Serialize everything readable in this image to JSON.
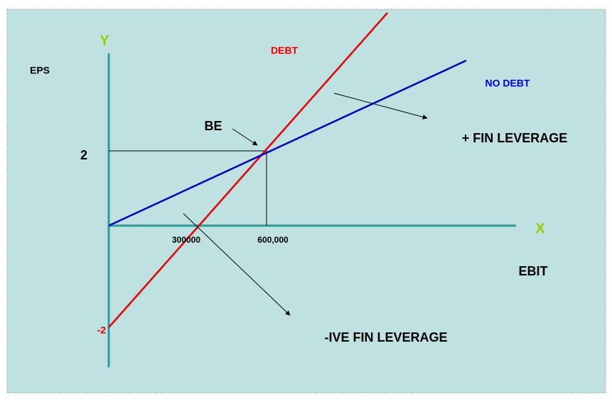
{
  "axes": {
    "y_label": "Y",
    "x_label": "X",
    "y_title": "EPS",
    "x_title": "EBIT"
  },
  "lines": {
    "debt": "DEBT",
    "no_debt": "NO DEBT"
  },
  "points": {
    "break_even": "BE",
    "eps_value": "2",
    "eps_negative": "-2",
    "ebit_low": "300000",
    "ebit_high": "600,000"
  },
  "regions": {
    "positive": "+ FIN LEVERAGE",
    "negative": "-IVE FIN LEVERAGE"
  }
}
